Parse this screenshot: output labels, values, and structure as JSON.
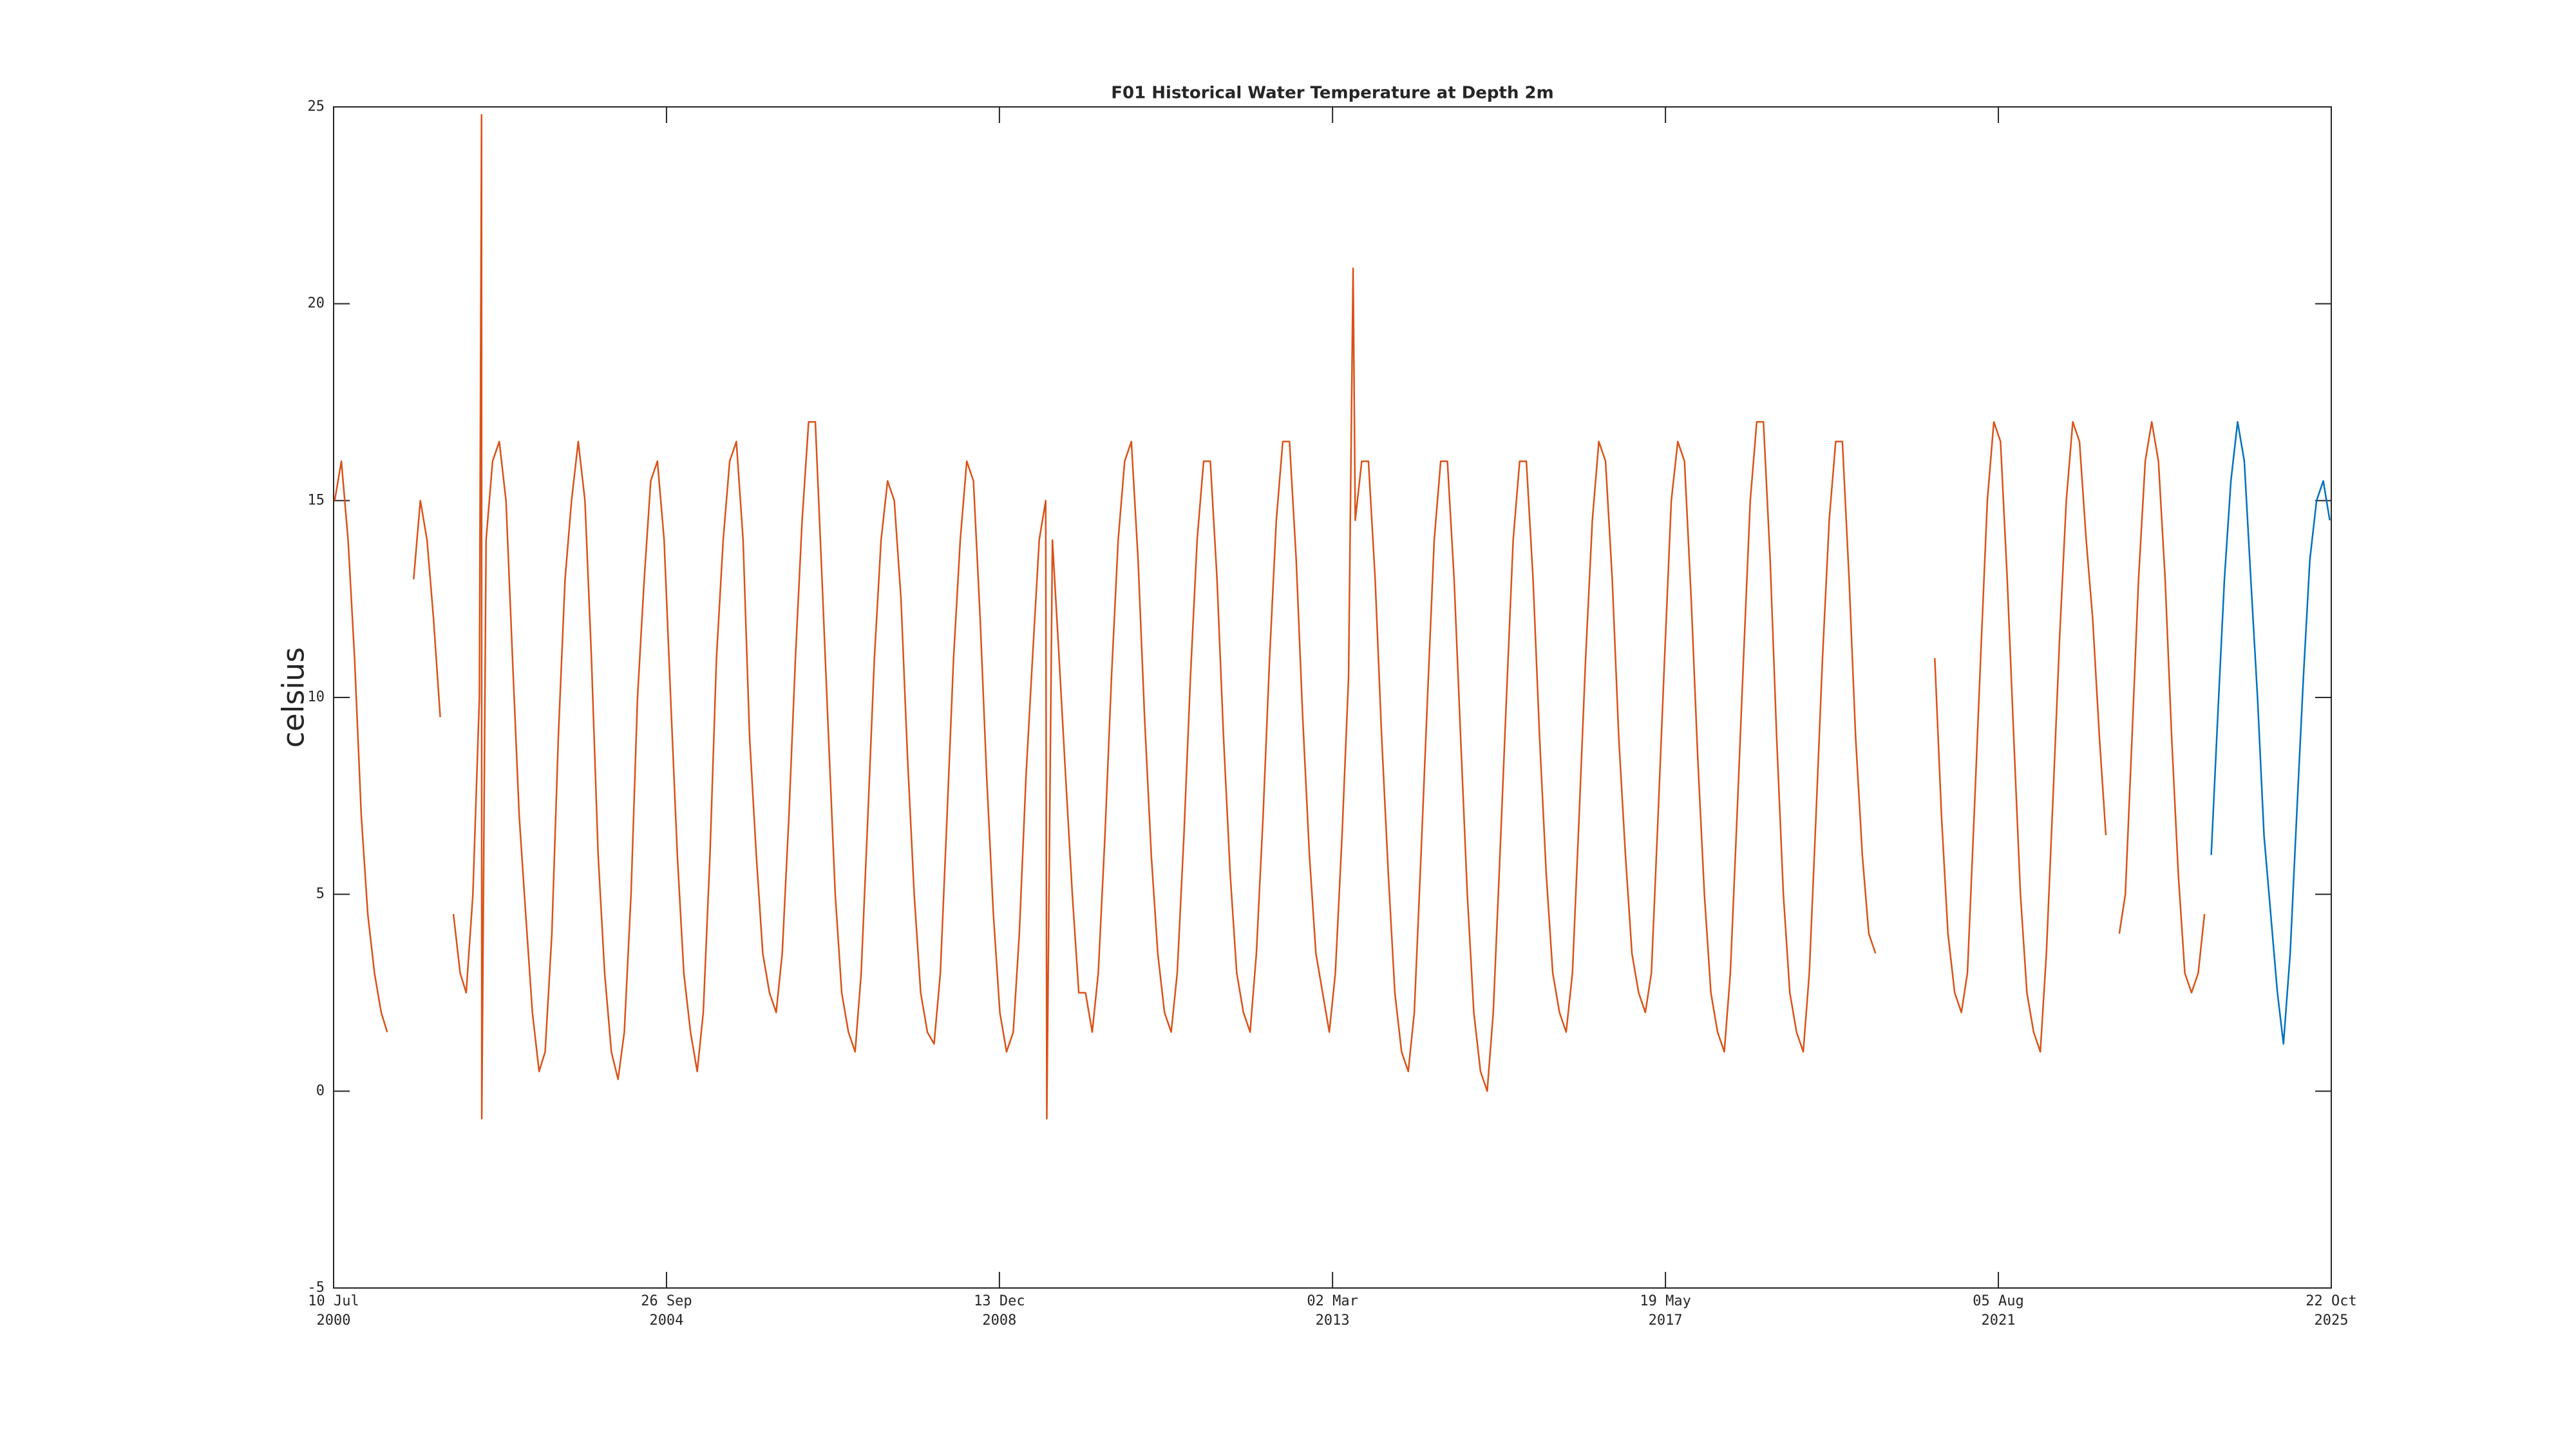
{
  "chart_data": {
    "type": "line",
    "title": "F01 Historical Water Temperature at Depth 2m",
    "y_label": "celsius",
    "xlim": [
      "2000-07-10",
      "2025-10-22"
    ],
    "xticks": [
      {
        "value": "2000-07-10",
        "label": "10 Jul 2000"
      },
      {
        "value": "2004-09-26",
        "label": "26 Sep 2004"
      },
      {
        "value": "2008-12-13",
        "label": "13 Dec 2008"
      },
      {
        "value": "2013-03-02",
        "label": "02 Mar 2013"
      },
      {
        "value": "2017-05-19",
        "label": "19 May 2017"
      },
      {
        "value": "2021-08-05",
        "label": "05 Aug 2021"
      },
      {
        "value": "2025-10-22",
        "label": "22 Oct 2025"
      }
    ],
    "ylim": [
      -5,
      25
    ],
    "yticks": [
      -5,
      0,
      5,
      10,
      15,
      20,
      25
    ],
    "series": [
      {
        "color": "#d95319",
        "x": [
          "2000-07-15",
          "2000-08-15",
          "2000-09-15",
          "2000-10-15",
          "2000-11-15",
          "2000-12-15",
          "2001-01-15",
          "2001-02-15",
          "2001-03-15",
          "2001-04-15",
          "2001-05-15",
          "2001-06-15",
          "2001-07-15",
          "2001-08-15",
          "2001-09-15",
          "2001-10-15",
          "2001-11-15",
          "2001-12-15",
          "2002-01-15",
          "2002-02-15",
          "2002-03-15",
          "2002-04-15",
          "2002-05-15",
          "2002-05-25",
          "2002-05-26",
          "2002-06-15",
          "2002-07-15",
          "2002-08-15",
          "2002-09-15",
          "2002-10-15",
          "2002-11-15",
          "2002-12-15",
          "2003-01-15",
          "2003-02-15",
          "2003-03-15",
          "2003-04-15",
          "2003-05-15",
          "2003-06-15",
          "2003-07-15",
          "2003-08-15",
          "2003-09-15",
          "2003-10-15",
          "2003-11-15",
          "2003-12-15",
          "2004-01-15",
          "2004-02-15",
          "2004-03-15",
          "2004-04-15",
          "2004-05-15",
          "2004-06-15",
          "2004-07-15",
          "2004-08-15",
          "2004-09-15",
          "2004-10-15",
          "2004-11-15",
          "2004-12-15",
          "2005-01-15",
          "2005-02-15",
          "2005-03-15",
          "2005-04-15",
          "2005-05-15",
          "2005-06-15",
          "2005-07-15",
          "2005-08-15",
          "2005-09-15",
          "2005-10-15",
          "2005-11-15",
          "2005-12-15",
          "2006-01-15",
          "2006-02-15",
          "2006-03-15",
          "2006-04-15",
          "2006-05-15",
          "2006-06-15",
          "2006-07-15",
          "2006-08-15",
          "2006-09-15",
          "2006-10-15",
          "2006-11-15",
          "2006-12-15",
          "2007-01-15",
          "2007-02-15",
          "2007-03-15",
          "2007-04-15",
          "2007-05-15",
          "2007-06-15",
          "2007-07-15",
          "2007-08-15",
          "2007-09-15",
          "2007-10-15",
          "2007-11-15",
          "2007-12-15",
          "2008-01-15",
          "2008-02-15",
          "2008-03-15",
          "2008-04-15",
          "2008-05-15",
          "2008-06-15",
          "2008-07-15",
          "2008-08-15",
          "2008-09-15",
          "2008-10-15",
          "2008-11-15",
          "2008-12-15",
          "2009-01-15",
          "2009-02-15",
          "2009-03-15",
          "2009-04-15",
          "2009-05-15",
          "2009-06-15",
          "2009-07-15",
          "2009-07-20",
          "2009-08-15",
          "2009-09-15",
          "2009-10-15",
          "2009-11-15",
          "2009-12-15",
          "2010-01-15",
          "2010-02-15",
          "2010-03-15",
          "2010-04-15",
          "2010-05-15",
          "2010-06-15",
          "2010-07-15",
          "2010-08-15",
          "2010-09-15",
          "2010-10-15",
          "2010-11-15",
          "2010-12-15",
          "2011-01-15",
          "2011-02-15",
          "2011-03-15",
          "2011-04-15",
          "2011-05-15",
          "2011-06-15",
          "2011-07-15",
          "2011-08-15",
          "2011-09-15",
          "2011-10-15",
          "2011-11-15",
          "2011-12-15",
          "2012-01-15",
          "2012-02-15",
          "2012-03-15",
          "2012-04-15",
          "2012-05-15",
          "2012-06-15",
          "2012-07-15",
          "2012-08-15",
          "2012-09-15",
          "2012-10-15",
          "2012-11-15",
          "2012-12-15",
          "2013-01-15",
          "2013-02-15",
          "2013-03-15",
          "2013-04-15",
          "2013-05-15",
          "2013-06-05",
          "2013-06-15",
          "2013-07-15",
          "2013-08-15",
          "2013-09-15",
          "2013-10-15",
          "2013-11-15",
          "2013-12-15",
          "2014-01-15",
          "2014-02-15",
          "2014-03-15",
          "2014-04-15",
          "2014-05-15",
          "2014-06-15",
          "2014-07-15",
          "2014-08-15",
          "2014-09-15",
          "2014-10-15",
          "2014-11-15",
          "2014-12-15",
          "2015-01-15",
          "2015-02-15",
          "2015-03-15",
          "2015-04-15",
          "2015-05-15",
          "2015-06-15",
          "2015-07-15",
          "2015-08-15",
          "2015-09-15",
          "2015-10-15",
          "2015-11-15",
          "2015-12-15",
          "2016-01-15",
          "2016-02-15",
          "2016-03-15",
          "2016-04-15",
          "2016-05-15",
          "2016-06-15",
          "2016-07-15",
          "2016-08-15",
          "2016-09-15",
          "2016-10-15",
          "2016-11-15",
          "2016-12-15",
          "2017-01-15",
          "2017-02-15",
          "2017-03-15",
          "2017-04-15",
          "2017-05-15",
          "2017-06-15",
          "2017-07-15",
          "2017-08-15",
          "2017-09-15",
          "2017-10-15",
          "2017-11-15",
          "2017-12-15",
          "2018-01-15",
          "2018-02-15",
          "2018-03-15",
          "2018-04-15",
          "2018-05-15",
          "2018-06-15",
          "2018-07-15",
          "2018-08-15",
          "2018-09-15",
          "2018-10-15",
          "2018-11-15",
          "2018-12-15",
          "2019-01-15",
          "2019-02-15",
          "2019-03-15",
          "2019-04-15",
          "2019-05-15",
          "2019-06-15",
          "2019-07-15",
          "2019-08-15",
          "2019-09-15",
          "2019-10-15",
          "2019-11-15",
          "2019-12-15",
          "2020-01-15",
          "2020-02-15",
          "2020-03-15",
          "2020-04-15",
          "2020-05-15",
          "2020-06-15",
          "2020-07-15",
          "2020-08-15",
          "2020-09-15",
          "2020-10-15",
          "2020-11-15",
          "2020-12-15",
          "2021-01-15",
          "2021-02-15",
          "2021-03-15",
          "2021-04-15",
          "2021-05-15",
          "2021-06-15",
          "2021-07-15",
          "2021-08-15",
          "2021-09-15",
          "2021-10-15",
          "2021-11-15",
          "2021-12-15",
          "2022-01-15",
          "2022-02-15",
          "2022-03-15",
          "2022-04-15",
          "2022-05-15",
          "2022-06-15",
          "2022-07-15",
          "2022-08-15",
          "2022-09-15",
          "2022-10-15",
          "2022-11-15",
          "2022-12-15",
          "2023-01-15",
          "2023-02-15",
          "2023-03-15",
          "2023-04-15",
          "2023-05-15",
          "2023-06-15",
          "2023-07-15",
          "2023-08-15",
          "2023-09-15",
          "2023-10-15",
          "2023-11-15",
          "2023-12-15",
          "2024-01-15",
          "2024-02-15",
          "2024-03-15"
        ],
        "values": [
          15,
          16,
          14,
          11,
          7,
          4.5,
          3,
          2,
          1.5,
          null,
          null,
          null,
          13,
          15,
          14,
          12,
          9.5,
          null,
          4.5,
          3,
          2.5,
          5,
          10,
          24.8,
          -0.7,
          14,
          16,
          16.5,
          15,
          11,
          7,
          4.5,
          2,
          0.5,
          1,
          4,
          9,
          13,
          15,
          16.5,
          15,
          11,
          6,
          3,
          1,
          0.3,
          1.5,
          5,
          10,
          13,
          15.5,
          16,
          14,
          10,
          6,
          3,
          1.5,
          0.5,
          2,
          6,
          11,
          14,
          16,
          16.5,
          14,
          9,
          6,
          3.5,
          2.5,
          2,
          3.5,
          7,
          11,
          14.5,
          17,
          17,
          13,
          9,
          5,
          2.5,
          1.5,
          1,
          3,
          7,
          11,
          14,
          15.5,
          15,
          12.5,
          8.5,
          5,
          2.5,
          1.5,
          1.2,
          3,
          7,
          11,
          14,
          16,
          15.5,
          12,
          8,
          4.5,
          2,
          1,
          1.5,
          4,
          8,
          11,
          14,
          15,
          -0.7,
          14,
          11,
          8,
          5,
          2.5,
          2.5,
          1.5,
          3,
          6.5,
          10.5,
          14,
          16,
          16.5,
          13.5,
          9.5,
          6,
          3.5,
          2,
          1.5,
          3,
          6.5,
          10.5,
          14,
          16,
          16,
          13,
          9,
          5.5,
          3,
          2,
          1.5,
          3.5,
          7,
          11,
          14.5,
          16.5,
          16.5,
          13.5,
          9.5,
          6,
          3.5,
          2.5,
          1.5,
          3,
          6.5,
          10.5,
          20.9,
          14.5,
          16,
          16,
          13,
          9,
          5.5,
          2.5,
          1,
          0.5,
          2,
          6,
          10,
          14,
          16,
          16,
          13,
          9,
          5,
          2,
          0.5,
          0,
          2,
          6,
          10,
          14,
          16,
          16,
          13,
          9,
          5.5,
          3,
          2,
          1.5,
          3,
          7,
          11,
          14.5,
          16.5,
          16,
          13,
          9,
          6,
          3.5,
          2.5,
          2,
          3,
          7,
          11,
          15,
          16.5,
          16,
          12.5,
          8.5,
          5,
          2.5,
          1.5,
          1,
          3,
          7,
          11,
          15,
          17,
          17,
          13.5,
          9,
          5,
          2.5,
          1.5,
          1,
          3,
          7,
          11,
          14.5,
          16.5,
          16.5,
          13,
          9,
          6,
          4,
          3.5,
          null,
          null,
          null,
          null,
          null,
          null,
          null,
          null,
          11,
          7,
          4,
          2.5,
          2,
          3,
          7,
          11,
          15,
          17,
          16.5,
          13,
          9,
          5,
          2.5,
          1.5,
          1,
          3.5,
          7.5,
          11.5,
          15,
          17,
          16.5,
          14,
          12,
          9,
          6.5,
          null,
          4,
          5,
          9,
          13,
          16,
          17,
          16,
          13,
          9,
          5.5,
          3,
          2.5,
          3,
          4.5
        ]
      },
      {
        "color": "#0072bd",
        "x": [
          "2024-04-15",
          "2024-05-15",
          "2024-06-15",
          "2024-07-15",
          "2024-08-15",
          "2024-09-15",
          "2024-10-15",
          "2024-11-15",
          "2024-12-15",
          "2025-01-15",
          "2025-02-15",
          "2025-03-15",
          "2025-04-15",
          "2025-05-15",
          "2025-06-15",
          "2025-07-15",
          "2025-08-15",
          "2025-09-15",
          "2025-10-15"
        ],
        "values": [
          6,
          9.5,
          13,
          15.5,
          17,
          16,
          13,
          10,
          6.5,
          4.5,
          2.5,
          1.2,
          3.5,
          7,
          10.5,
          13.5,
          15,
          15.5,
          14.5
        ]
      }
    ]
  }
}
